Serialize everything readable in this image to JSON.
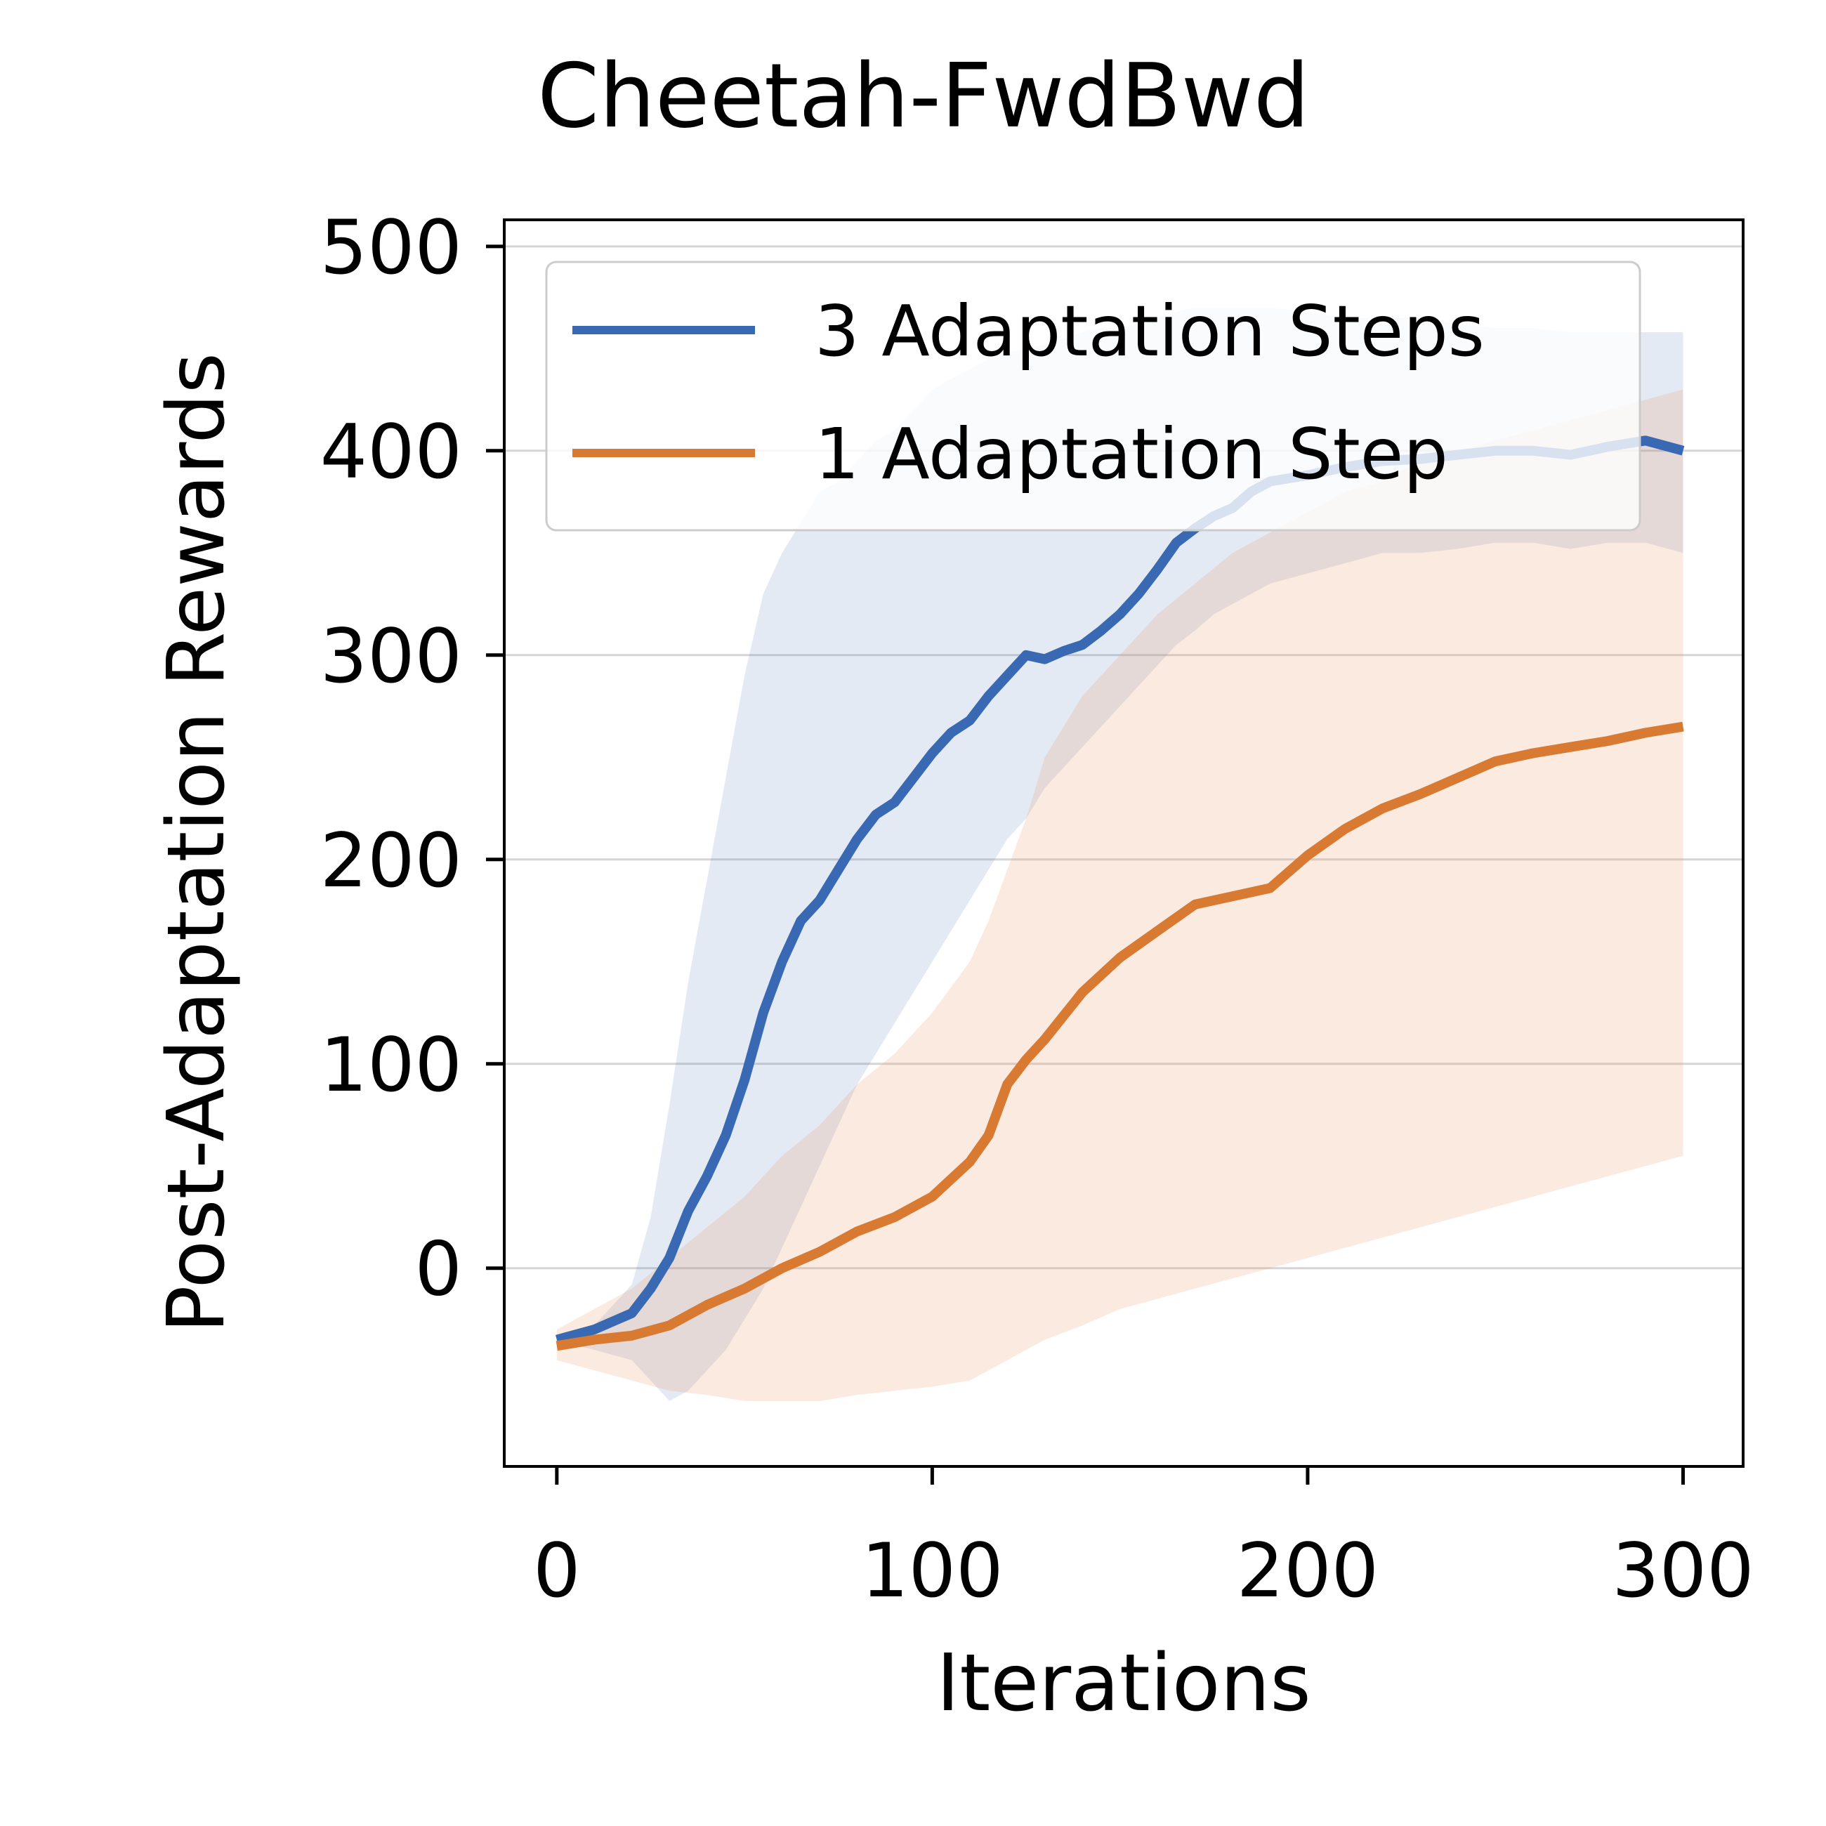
{
  "chart_data": {
    "type": "line",
    "title": "Cheetah-FwdBwd",
    "xlabel": "Iterations",
    "ylabel": "Post-Adaptation Rewards",
    "xlim": [
      -14,
      316
    ],
    "ylim": [
      -97,
      513
    ],
    "xticks": [
      0,
      100,
      200,
      300
    ],
    "yticks": [
      0,
      100,
      200,
      300,
      400,
      500
    ],
    "grid": "horizontal",
    "legend_position": "top-right",
    "series": [
      {
        "name": "3 Adaptation Steps",
        "color": "#3a69b4",
        "band_color": "#3a69b4",
        "band_opacity": 0.14,
        "x": [
          0,
          10,
          20,
          25,
          30,
          35,
          40,
          45,
          50,
          55,
          60,
          65,
          70,
          75,
          80,
          85,
          90,
          95,
          100,
          105,
          110,
          115,
          120,
          125,
          130,
          135,
          140,
          145,
          150,
          155,
          160,
          165,
          170,
          175,
          180,
          185,
          190,
          200,
          210,
          220,
          230,
          240,
          250,
          260,
          270,
          280,
          290,
          300
        ],
        "mean": [
          -35,
          -30,
          -22,
          -10,
          5,
          28,
          45,
          65,
          92,
          125,
          150,
          170,
          180,
          195,
          210,
          222,
          228,
          240,
          252,
          262,
          268,
          280,
          290,
          300,
          298,
          302,
          305,
          312,
          320,
          330,
          342,
          355,
          362,
          368,
          372,
          380,
          385,
          388,
          392,
          395,
          396,
          398,
          400,
          400,
          398,
          402,
          405,
          400
        ],
        "upper": [
          -35,
          -28,
          -8,
          25,
          80,
          140,
          190,
          240,
          290,
          330,
          350,
          365,
          380,
          385,
          395,
          405,
          410,
          420,
          430,
          435,
          440,
          445,
          448,
          450,
          452,
          455,
          458,
          460,
          460,
          462,
          465,
          468,
          470,
          470,
          470,
          470,
          470,
          468,
          465,
          465,
          465,
          462,
          460,
          460,
          458,
          458,
          458,
          458
        ],
        "lower": [
          -35,
          -40,
          -45,
          -55,
          -65,
          -60,
          -50,
          -40,
          -25,
          -10,
          10,
          30,
          50,
          70,
          90,
          105,
          120,
          135,
          150,
          165,
          180,
          195,
          210,
          220,
          235,
          245,
          255,
          265,
          275,
          285,
          295,
          305,
          312,
          320,
          325,
          330,
          335,
          340,
          345,
          350,
          350,
          352,
          355,
          355,
          352,
          355,
          355,
          350
        ]
      },
      {
        "name": "1 Adaptation Step",
        "color": "#d97a33",
        "band_color": "#e8a070",
        "band_opacity": 0.22,
        "x": [
          0,
          10,
          20,
          30,
          40,
          50,
          60,
          70,
          80,
          90,
          100,
          110,
          115,
          120,
          125,
          130,
          140,
          150,
          160,
          170,
          180,
          190,
          200,
          210,
          220,
          230,
          240,
          250,
          260,
          270,
          280,
          290,
          300
        ],
        "mean": [
          -38,
          -35,
          -33,
          -28,
          -18,
          -10,
          0,
          8,
          18,
          25,
          35,
          52,
          65,
          90,
          102,
          112,
          135,
          152,
          165,
          178,
          182,
          186,
          202,
          215,
          225,
          232,
          240,
          248,
          252,
          255,
          258,
          262,
          265
        ],
        "upper": [
          -30,
          -20,
          -10,
          5,
          20,
          35,
          55,
          70,
          90,
          105,
          125,
          150,
          170,
          195,
          220,
          250,
          280,
          300,
          320,
          335,
          350,
          360,
          370,
          380,
          385,
          395,
          400,
          405,
          410,
          415,
          420,
          425,
          430
        ],
        "lower": [
          -45,
          -50,
          -55,
          -60,
          -62,
          -65,
          -65,
          -65,
          -62,
          -60,
          -58,
          -55,
          -50,
          -45,
          -40,
          -35,
          -28,
          -20,
          -15,
          -10,
          -5,
          0,
          5,
          10,
          15,
          20,
          25,
          30,
          35,
          40,
          45,
          50,
          55
        ]
      }
    ]
  }
}
